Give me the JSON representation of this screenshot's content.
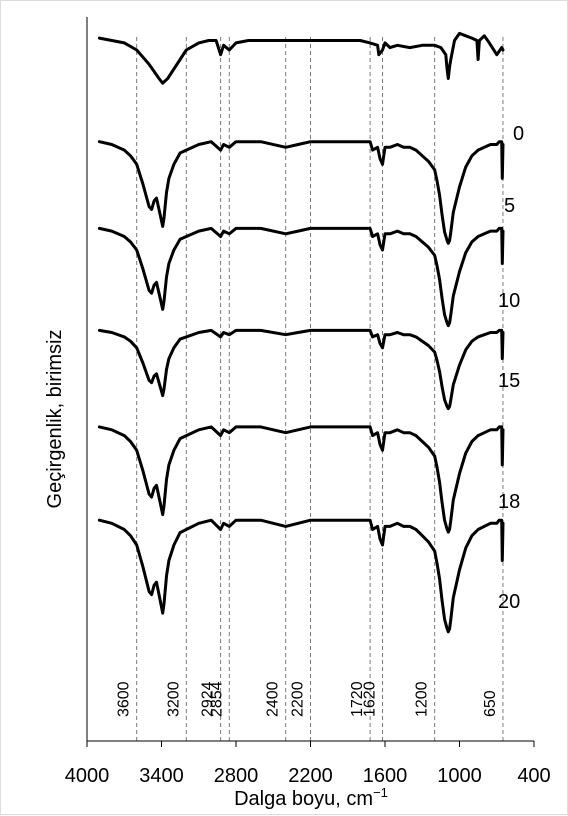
{
  "chart_data": {
    "type": "line",
    "title": "",
    "xlabel": "Dalga boyu, cm",
    "xlabel_superscript": "−1",
    "ylabel": "Geçirgenlik, birimsiz",
    "xlim": [
      4000,
      400
    ],
    "x_reversed": true,
    "x_ticks": [
      "4000",
      "3400",
      "2800",
      "2200",
      "1600",
      "1000",
      "400"
    ],
    "grid": false,
    "legend": "none",
    "reference_lines": [
      "3600",
      "3200",
      "2924",
      "2854",
      "2400",
      "2200",
      "1720",
      "1620",
      "1200",
      "650"
    ],
    "y_units": "arbitrary (stacked spectra, offset for clarity)",
    "series": [
      {
        "name": "0",
        "x": [
          3900,
          3700,
          3600,
          3500,
          3420,
          3390,
          3350,
          3250,
          3200,
          3100,
          3020,
          2960,
          2924,
          2900,
          2854,
          2800,
          2700,
          2500,
          2400,
          2200,
          2000,
          1800,
          1720,
          1660,
          1650,
          1620,
          1600,
          1560,
          1500,
          1400,
          1300,
          1200,
          1150,
          1110,
          1100,
          1090,
          1080,
          1070,
          1040,
          1000,
          950,
          900,
          860,
          850,
          840,
          800,
          760,
          700,
          660,
          650
        ],
        "y": [
          0.97,
          0.95,
          0.92,
          0.86,
          0.8,
          0.78,
          0.8,
          0.88,
          0.92,
          0.95,
          0.96,
          0.96,
          0.9,
          0.94,
          0.92,
          0.95,
          0.96,
          0.96,
          0.96,
          0.96,
          0.96,
          0.96,
          0.95,
          0.94,
          0.9,
          0.92,
          0.95,
          0.93,
          0.94,
          0.93,
          0.94,
          0.94,
          0.93,
          0.9,
          0.84,
          0.8,
          0.85,
          0.88,
          0.96,
          0.99,
          0.98,
          0.97,
          0.96,
          0.88,
          0.96,
          0.98,
          0.95,
          0.9,
          0.93,
          0.92
        ]
      },
      {
        "name": "5",
        "x": [
          3900,
          3800,
          3700,
          3650,
          3600,
          3550,
          3500,
          3480,
          3460,
          3440,
          3420,
          3400,
          3390,
          3380,
          3360,
          3340,
          3300,
          3250,
          3200,
          3100,
          3000,
          2924,
          2900,
          2854,
          2800,
          2600,
          2400,
          2300,
          2200,
          2000,
          1800,
          1720,
          1700,
          1660,
          1640,
          1620,
          1600,
          1560,
          1500,
          1450,
          1400,
          1350,
          1300,
          1250,
          1200,
          1180,
          1160,
          1140,
          1120,
          1100,
          1090,
          1080,
          1070,
          1050,
          1000,
          950,
          900,
          850,
          800,
          750,
          700,
          680,
          660,
          655,
          650
        ],
        "y": [
          0.98,
          0.97,
          0.95,
          0.93,
          0.9,
          0.83,
          0.75,
          0.74,
          0.77,
          0.78,
          0.74,
          0.7,
          0.68,
          0.71,
          0.8,
          0.85,
          0.9,
          0.94,
          0.95,
          0.97,
          0.98,
          0.95,
          0.97,
          0.96,
          0.98,
          0.98,
          0.96,
          0.97,
          0.98,
          0.98,
          0.98,
          0.98,
          0.95,
          0.96,
          0.92,
          0.9,
          0.96,
          0.96,
          0.97,
          0.96,
          0.96,
          0.95,
          0.93,
          0.91,
          0.88,
          0.84,
          0.79,
          0.72,
          0.66,
          0.63,
          0.62,
          0.63,
          0.66,
          0.73,
          0.82,
          0.89,
          0.93,
          0.95,
          0.96,
          0.97,
          0.97,
          0.98,
          0.98,
          0.85,
          0.97
        ]
      },
      {
        "name": "10",
        "x": [
          3900,
          3800,
          3700,
          3650,
          3600,
          3550,
          3500,
          3480,
          3460,
          3440,
          3420,
          3400,
          3390,
          3380,
          3360,
          3340,
          3300,
          3250,
          3200,
          3100,
          3000,
          2924,
          2900,
          2854,
          2800,
          2600,
          2400,
          2300,
          2200,
          2000,
          1800,
          1720,
          1700,
          1660,
          1640,
          1620,
          1600,
          1560,
          1500,
          1450,
          1400,
          1350,
          1300,
          1250,
          1200,
          1180,
          1160,
          1140,
          1120,
          1100,
          1090,
          1080,
          1070,
          1050,
          1000,
          950,
          900,
          850,
          800,
          750,
          700,
          680,
          660,
          655,
          650
        ],
        "y": [
          0.98,
          0.97,
          0.95,
          0.93,
          0.9,
          0.83,
          0.75,
          0.74,
          0.77,
          0.78,
          0.74,
          0.7,
          0.68,
          0.71,
          0.8,
          0.85,
          0.9,
          0.94,
          0.95,
          0.97,
          0.98,
          0.95,
          0.97,
          0.96,
          0.98,
          0.98,
          0.96,
          0.97,
          0.98,
          0.98,
          0.98,
          0.98,
          0.95,
          0.96,
          0.92,
          0.9,
          0.96,
          0.96,
          0.97,
          0.96,
          0.96,
          0.95,
          0.93,
          0.91,
          0.88,
          0.84,
          0.79,
          0.72,
          0.66,
          0.63,
          0.62,
          0.63,
          0.66,
          0.73,
          0.82,
          0.89,
          0.93,
          0.95,
          0.96,
          0.97,
          0.97,
          0.98,
          0.98,
          0.85,
          0.97
        ]
      },
      {
        "name": "15",
        "x": [
          3900,
          3800,
          3700,
          3650,
          3600,
          3550,
          3500,
          3480,
          3460,
          3440,
          3420,
          3400,
          3390,
          3380,
          3360,
          3340,
          3300,
          3250,
          3200,
          3100,
          3000,
          2924,
          2900,
          2854,
          2800,
          2600,
          2400,
          2300,
          2200,
          2000,
          1800,
          1720,
          1700,
          1660,
          1640,
          1620,
          1600,
          1560,
          1500,
          1450,
          1400,
          1350,
          1300,
          1250,
          1200,
          1180,
          1160,
          1140,
          1120,
          1100,
          1090,
          1080,
          1070,
          1050,
          1000,
          950,
          900,
          850,
          800,
          750,
          700,
          680,
          660,
          655,
          650
        ],
        "y": [
          0.98,
          0.97,
          0.95,
          0.93,
          0.9,
          0.83,
          0.75,
          0.74,
          0.77,
          0.78,
          0.74,
          0.7,
          0.68,
          0.71,
          0.8,
          0.85,
          0.9,
          0.94,
          0.95,
          0.97,
          0.98,
          0.95,
          0.97,
          0.96,
          0.98,
          0.98,
          0.96,
          0.97,
          0.98,
          0.98,
          0.98,
          0.98,
          0.95,
          0.96,
          0.92,
          0.9,
          0.96,
          0.96,
          0.97,
          0.96,
          0.96,
          0.95,
          0.93,
          0.91,
          0.88,
          0.84,
          0.79,
          0.72,
          0.66,
          0.63,
          0.62,
          0.63,
          0.66,
          0.73,
          0.82,
          0.89,
          0.93,
          0.95,
          0.96,
          0.97,
          0.97,
          0.98,
          0.98,
          0.85,
          0.97
        ]
      },
      {
        "name": "18",
        "x": [
          3900,
          3800,
          3700,
          3650,
          3600,
          3550,
          3500,
          3480,
          3460,
          3440,
          3420,
          3400,
          3390,
          3380,
          3360,
          3340,
          3300,
          3250,
          3200,
          3100,
          3000,
          2924,
          2900,
          2854,
          2800,
          2600,
          2400,
          2300,
          2200,
          2000,
          1800,
          1720,
          1700,
          1660,
          1640,
          1620,
          1600,
          1560,
          1500,
          1450,
          1400,
          1350,
          1300,
          1250,
          1200,
          1180,
          1160,
          1140,
          1120,
          1100,
          1090,
          1080,
          1070,
          1050,
          1000,
          950,
          900,
          850,
          800,
          750,
          700,
          680,
          660,
          655,
          650
        ],
        "y": [
          0.98,
          0.97,
          0.95,
          0.93,
          0.9,
          0.83,
          0.75,
          0.74,
          0.77,
          0.78,
          0.74,
          0.7,
          0.68,
          0.71,
          0.8,
          0.85,
          0.9,
          0.94,
          0.95,
          0.97,
          0.98,
          0.95,
          0.97,
          0.96,
          0.98,
          0.98,
          0.96,
          0.97,
          0.98,
          0.98,
          0.98,
          0.98,
          0.95,
          0.96,
          0.92,
          0.9,
          0.96,
          0.96,
          0.97,
          0.96,
          0.96,
          0.95,
          0.93,
          0.91,
          0.88,
          0.84,
          0.79,
          0.72,
          0.66,
          0.63,
          0.62,
          0.63,
          0.66,
          0.73,
          0.82,
          0.89,
          0.93,
          0.95,
          0.96,
          0.97,
          0.97,
          0.98,
          0.98,
          0.85,
          0.97
        ]
      },
      {
        "name": "20",
        "x": [
          3900,
          3800,
          3700,
          3650,
          3600,
          3550,
          3500,
          3480,
          3460,
          3440,
          3420,
          3400,
          3390,
          3380,
          3360,
          3340,
          3300,
          3250,
          3200,
          3100,
          3000,
          2924,
          2900,
          2854,
          2800,
          2600,
          2400,
          2300,
          2200,
          2000,
          1800,
          1720,
          1700,
          1660,
          1640,
          1620,
          1600,
          1560,
          1500,
          1450,
          1400,
          1350,
          1300,
          1250,
          1200,
          1180,
          1160,
          1140,
          1120,
          1100,
          1090,
          1080,
          1070,
          1050,
          1000,
          950,
          900,
          850,
          800,
          750,
          700,
          680,
          660,
          655,
          650
        ],
        "y": [
          0.98,
          0.97,
          0.95,
          0.93,
          0.9,
          0.83,
          0.75,
          0.74,
          0.77,
          0.78,
          0.74,
          0.7,
          0.68,
          0.71,
          0.8,
          0.85,
          0.9,
          0.94,
          0.95,
          0.97,
          0.98,
          0.95,
          0.97,
          0.96,
          0.98,
          0.98,
          0.96,
          0.97,
          0.98,
          0.98,
          0.98,
          0.98,
          0.95,
          0.96,
          0.92,
          0.9,
          0.96,
          0.96,
          0.97,
          0.96,
          0.96,
          0.95,
          0.93,
          0.91,
          0.88,
          0.84,
          0.79,
          0.72,
          0.66,
          0.63,
          0.62,
          0.63,
          0.66,
          0.73,
          0.82,
          0.89,
          0.93,
          0.95,
          0.96,
          0.97,
          0.97,
          0.98,
          0.98,
          0.85,
          0.97
        ]
      }
    ]
  }
}
